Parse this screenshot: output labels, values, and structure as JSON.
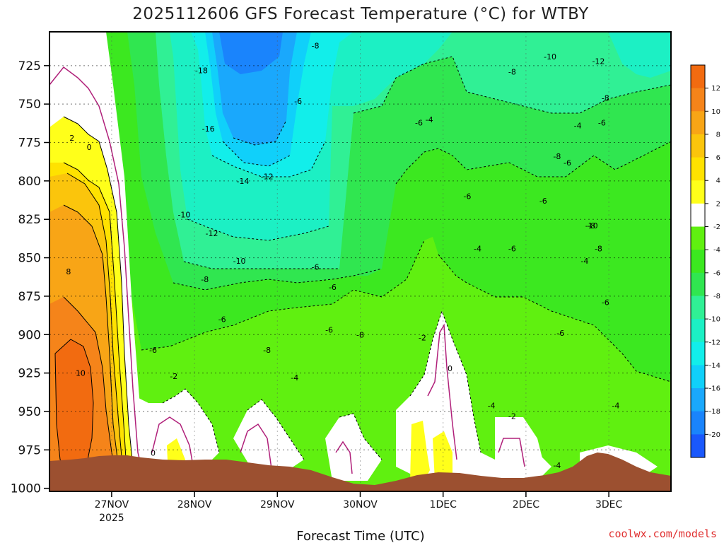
{
  "title": "2025112606 GFS Forecast Temperature (°C) for WTBY",
  "credit": "coolwx.com/models",
  "chart_data": {
    "type": "heatmap",
    "title": "2025112606 GFS Forecast Temperature (°C) for WTBY",
    "xlabel": "Forecast Time (UTC)",
    "ylabel": "",
    "x_ticks": [
      {
        "value": 18,
        "label": "27NOV",
        "sublabel": "2025"
      },
      {
        "value": 42,
        "label": "28NOV",
        "sublabel": ""
      },
      {
        "value": 66,
        "label": "29NOV",
        "sublabel": ""
      },
      {
        "value": 90,
        "label": "30NOV",
        "sublabel": ""
      },
      {
        "value": 114,
        "label": "1DEC",
        "sublabel": ""
      },
      {
        "value": 138,
        "label": "2DEC",
        "sublabel": ""
      },
      {
        "value": 162,
        "label": "3DEC",
        "sublabel": ""
      }
    ],
    "xlim": [
      0,
      180
    ],
    "y_ticks": [
      725,
      750,
      775,
      800,
      825,
      850,
      875,
      900,
      925,
      950,
      975,
      1000
    ],
    "ylim": [
      703,
      1002
    ],
    "grid": true,
    "colorbar": {
      "levels": [
        -22,
        -20,
        -18,
        -16,
        -14,
        -12,
        -10,
        -8,
        -6,
        -4,
        -2,
        2,
        4,
        6,
        8,
        10,
        12,
        14
      ],
      "labels": [
        "12",
        "10",
        "8",
        "6",
        "4",
        "2",
        "-2",
        "-4",
        "-6",
        "-8",
        "-10",
        "-12",
        "-14",
        "-16",
        "-18",
        "-20"
      ],
      "colors_top_to_bottom": [
        "#f26b10",
        "#f5841a",
        "#f8a516",
        "#fbc50c",
        "#ffe200",
        "#ffff1a",
        "#ffffff",
        "#60f010",
        "#3ce820",
        "#30e650",
        "#30f095",
        "#1cf0c4",
        "#12eeea",
        "#10d0fa",
        "#1aa8fc",
        "#1a84fc",
        "#1a58fc"
      ]
    },
    "contour_labels": [
      {
        "x": 6.5,
        "p": 772,
        "text": "2"
      },
      {
        "x": 11.5,
        "p": 778,
        "text": "0"
      },
      {
        "x": 5.5,
        "p": 859,
        "text": "8"
      },
      {
        "x": 9,
        "p": 925,
        "text": "10"
      },
      {
        "x": 77,
        "p": 712,
        "text": "-8"
      },
      {
        "x": 44,
        "p": 728,
        "text": "-18"
      },
      {
        "x": 46,
        "p": 766,
        "text": "-16"
      },
      {
        "x": 56,
        "p": 800,
        "text": "-14"
      },
      {
        "x": 63,
        "p": 797,
        "text": "-12"
      },
      {
        "x": 39,
        "p": 822,
        "text": "-10"
      },
      {
        "x": 47,
        "p": 834,
        "text": "-12"
      },
      {
        "x": 55,
        "p": 852,
        "text": "-10"
      },
      {
        "x": 45,
        "p": 864,
        "text": "-8"
      },
      {
        "x": 72,
        "p": 748,
        "text": "-6"
      },
      {
        "x": 77,
        "p": 856,
        "text": "-6"
      },
      {
        "x": 82,
        "p": 869,
        "text": "-6"
      },
      {
        "x": 81,
        "p": 897,
        "text": "-6"
      },
      {
        "x": 50,
        "p": 890,
        "text": "-6"
      },
      {
        "x": 63,
        "p": 910,
        "text": "-8"
      },
      {
        "x": 71,
        "p": 928,
        "text": "-4"
      },
      {
        "x": 30,
        "p": 910,
        "text": "-6"
      },
      {
        "x": 36,
        "p": 927,
        "text": "-2"
      },
      {
        "x": 30,
        "p": 977,
        "text": "0"
      },
      {
        "x": 90,
        "p": 900,
        "text": "-8"
      },
      {
        "x": 107,
        "p": 762,
        "text": "-6"
      },
      {
        "x": 110,
        "p": 760,
        "text": "-4"
      },
      {
        "x": 108,
        "p": 902,
        "text": "-2"
      },
      {
        "x": 116,
        "p": 922,
        "text": "0"
      },
      {
        "x": 121,
        "p": 810,
        "text": "-6"
      },
      {
        "x": 124,
        "p": 844,
        "text": "-4"
      },
      {
        "x": 134,
        "p": 844,
        "text": "-6"
      },
      {
        "x": 134,
        "p": 729,
        "text": "-8"
      },
      {
        "x": 145,
        "p": 719,
        "text": "-10"
      },
      {
        "x": 159,
        "p": 722,
        "text": "-12"
      },
      {
        "x": 161,
        "p": 746,
        "text": "-8"
      },
      {
        "x": 160,
        "p": 762,
        "text": "-6"
      },
      {
        "x": 153,
        "p": 764,
        "text": "-4"
      },
      {
        "x": 147,
        "p": 784,
        "text": "-8"
      },
      {
        "x": 150,
        "p": 788,
        "text": "-6"
      },
      {
        "x": 143,
        "p": 813,
        "text": "-6"
      },
      {
        "x": 157,
        "p": 829,
        "text": "-10"
      },
      {
        "x": 157,
        "p": 829,
        "text": "-8"
      },
      {
        "x": 159,
        "p": 844,
        "text": "-8"
      },
      {
        "x": 155,
        "p": 852,
        "text": "-4"
      },
      {
        "x": 148,
        "p": 899,
        "text": "-6"
      },
      {
        "x": 161,
        "p": 879,
        "text": "-6"
      },
      {
        "x": 128,
        "p": 946,
        "text": "-4"
      },
      {
        "x": 134,
        "p": 953,
        "text": "-2"
      },
      {
        "x": 147,
        "p": 985,
        "text": "-4"
      },
      {
        "x": 164,
        "p": 946,
        "text": "-4"
      }
    ]
  }
}
